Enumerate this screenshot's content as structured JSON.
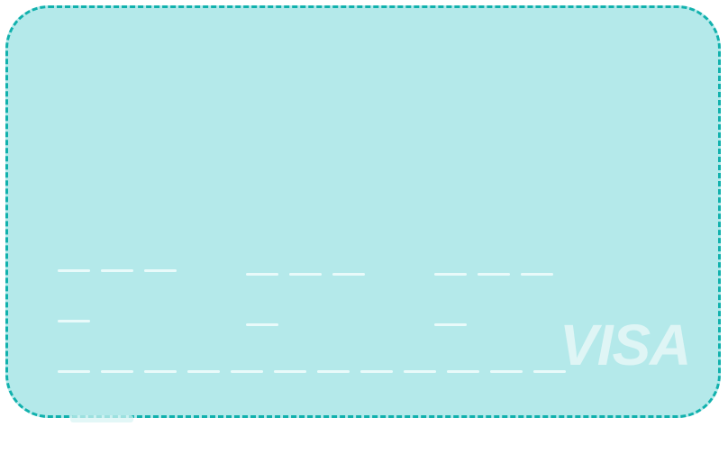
{
  "card": {
    "brand_text": "VISA",
    "background_color": "#b4e9ea",
    "border_color": "#11b1ad"
  }
}
